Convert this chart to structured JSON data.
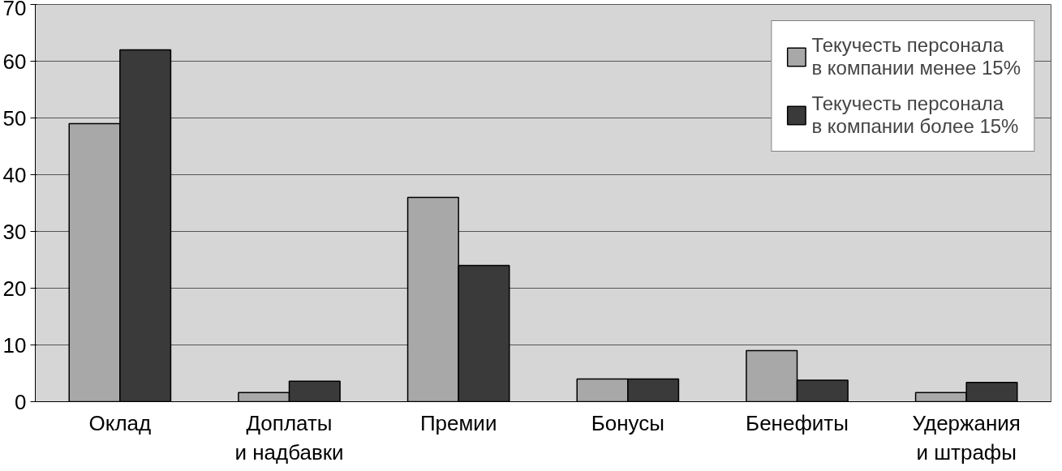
{
  "chart_data": {
    "type": "bar",
    "categories": [
      "Оклад",
      "Доплаты\nи надбавки",
      "Премии",
      "Бонусы",
      "Бенефиты",
      "Удержания\nи штрафы"
    ],
    "series": [
      {
        "name": "Текучесть персонала\nв компании менее 15%",
        "color": "#a8a8a8",
        "values": [
          49,
          1.6,
          36,
          4,
          9,
          1.6
        ]
      },
      {
        "name": "Текучесть персонала\nв компании более 15%",
        "color": "#3a3a3a",
        "values": [
          62,
          3.6,
          24,
          4,
          3.8,
          3.4
        ]
      }
    ],
    "ylim": [
      0,
      70
    ],
    "yticks": [
      0,
      10,
      20,
      30,
      40,
      50,
      60,
      70
    ],
    "grid": "y",
    "legend": "top right"
  }
}
